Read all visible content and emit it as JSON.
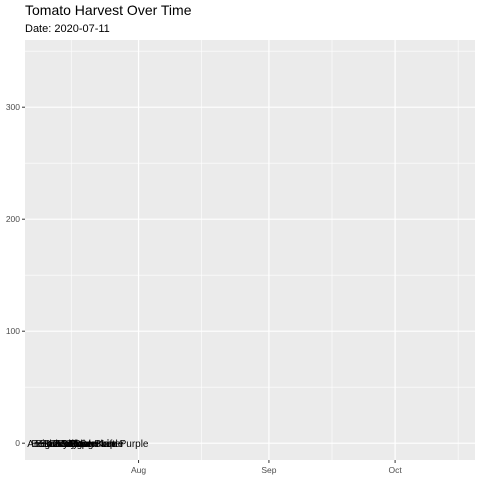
{
  "chart_data": {
    "type": "scatter",
    "title": "Tomato Harvest Over Time",
    "subtitle": "Date: 2020-07-11",
    "xlabel": "",
    "ylabel": "",
    "xlim": [
      "2020-07-05",
      "2020-10-20"
    ],
    "ylim": [
      -15,
      360
    ],
    "x_major_ticks": [
      {
        "date": "2020-08-01",
        "label": "Aug"
      },
      {
        "date": "2020-09-01",
        "label": "Sep"
      },
      {
        "date": "2020-10-01",
        "label": "Oct"
      }
    ],
    "x_minor_ticks": [
      "2020-07-16",
      "2020-08-16",
      "2020-09-16",
      "2020-10-16"
    ],
    "y_major_ticks": [
      0,
      100,
      200,
      300
    ],
    "y_minor_ticks": [
      50,
      150,
      250,
      350
    ],
    "grid": true,
    "legend": "none",
    "background": "#ebebeb",
    "grid_color": "#ffffff",
    "series": [
      {
        "name": "Amish Paste",
        "x": "2020-07-06",
        "y": 0
      },
      {
        "name": "Better Boy",
        "x": "2020-07-07",
        "y": 0
      },
      {
        "name": "Big Beef",
        "x": "2020-07-08",
        "y": 0
      },
      {
        "name": "Bonny Best",
        "x": "2020-07-09",
        "y": 0
      },
      {
        "name": "Brandywine",
        "x": "2020-07-10",
        "y": 0
      },
      {
        "name": "Cherokee Purple",
        "x": "2020-07-11",
        "y": 0
      },
      {
        "name": "Jet Star",
        "x": "2020-07-12",
        "y": 0
      },
      {
        "name": "Mortgage Lifter",
        "x": "2020-07-13",
        "y": 0
      },
      {
        "name": "Old German",
        "x": "2020-07-14",
        "y": 0
      },
      {
        "name": "Grape",
        "x": "2020-07-15",
        "y": 0
      },
      {
        "name": "Black Krim",
        "x": "2020-07-16",
        "y": 0
      },
      {
        "name": "Cherokee Purple",
        "x": "2020-07-17",
        "y": 0
      }
    ]
  }
}
